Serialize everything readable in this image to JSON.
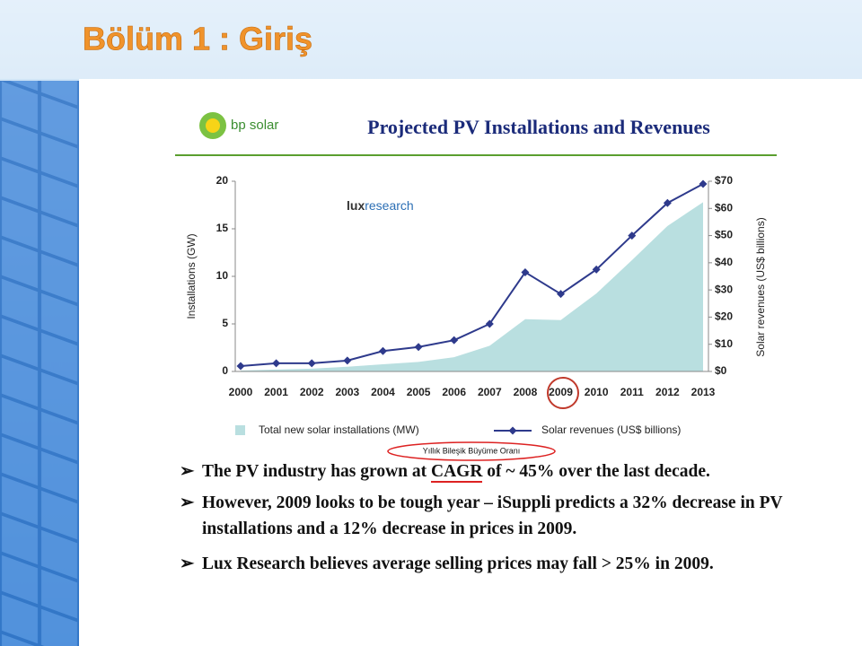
{
  "slide_title": "Bölüm 1 : Giriş",
  "logo_text": "bp solar",
  "source_logo": [
    "lux",
    "research"
  ],
  "annotation": "Yıllık Bileşik Büyüme Oranı",
  "bullets": [
    [
      "The PV industry has grown at ",
      "CAGR",
      " of ~ 45% over the last decade."
    ],
    [
      "However, 2009 looks to be tough year – iSuppli predicts a 32% decrease in PV installations and a 12% decrease in prices in 2009."
    ],
    [
      "Lux Research believes average selling prices may fall > 25% in 2009."
    ]
  ],
  "chart_data": {
    "type": "area-line",
    "title": "Projected PV Installations and Revenues",
    "categories": [
      "2000",
      "2001",
      "2002",
      "2003",
      "2004",
      "2005",
      "2006",
      "2007",
      "2008",
      "2009",
      "2010",
      "2011",
      "2012",
      "2013"
    ],
    "series": [
      {
        "name": "Total new solar installations (MW)",
        "color": "#b9dfe0",
        "type": "area",
        "values": [
          0.1,
          0.2,
          0.3,
          0.5,
          0.75,
          1.0,
          1.5,
          2.7,
          5.5,
          5.4,
          8.2,
          11.7,
          15.3,
          17.8
        ]
      },
      {
        "name": "Solar revenues (US$ billions)",
        "color": "#2e3a8c",
        "type": "line",
        "axis": "y2",
        "values": [
          2,
          3,
          3,
          4,
          7.5,
          9,
          11.5,
          17.5,
          36.5,
          28.5,
          37.5,
          50,
          62,
          69
        ]
      }
    ],
    "ylabel": "Installations (GW)",
    "y2label": "Solar revenues (US$ billions)",
    "ylim": [
      0,
      20
    ],
    "yticks": [
      0,
      5,
      10,
      15,
      20
    ],
    "y2lim": [
      0,
      70
    ],
    "y2ticks": [
      {
        "value": 0,
        "label": "$0"
      },
      {
        "value": 10,
        "label": "$10"
      },
      {
        "value": 20,
        "label": "$20"
      },
      {
        "value": 30,
        "label": "$30"
      },
      {
        "value": 40,
        "label": "$40"
      },
      {
        "value": 50,
        "label": "$50"
      },
      {
        "value": 60,
        "label": "$60"
      },
      {
        "value": 70,
        "label": "$70"
      }
    ]
  }
}
